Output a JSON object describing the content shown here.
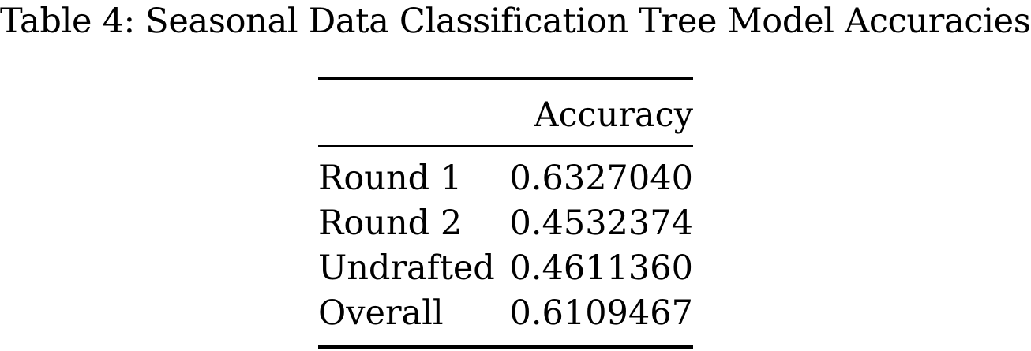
{
  "caption": "Table 4: Seasonal Data Classification Tree Model Accuracies",
  "table": {
    "header": {
      "label": "",
      "value": "Accuracy"
    },
    "rows": [
      {
        "label": "Round 1",
        "value": "0.6327040"
      },
      {
        "label": "Round 2",
        "value": "0.4532374"
      },
      {
        "label": "Undrafted",
        "value": "0.4611360"
      },
      {
        "label": "Overall",
        "value": "0.6109467"
      }
    ]
  }
}
